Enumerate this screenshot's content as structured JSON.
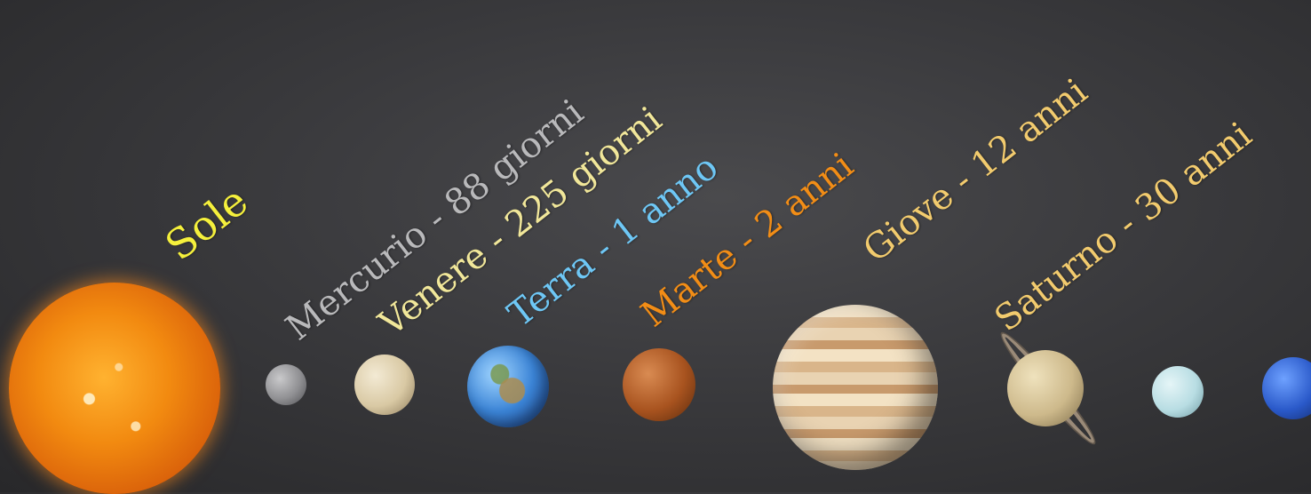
{
  "labels": {
    "sun": "Sole",
    "mercury": {
      "name": "Mercurio",
      "sep": " - ",
      "period": "88 giorni"
    },
    "venus": {
      "name": "Venere",
      "sep": " - ",
      "period": "225 giorni"
    },
    "earth": {
      "name": "Terra",
      "sep": " - ",
      "period": "1 anno"
    },
    "mars": {
      "name": "Marte",
      "sep": " - ",
      "period": "2 anni"
    },
    "jupiter": {
      "name": "Giove",
      "sep": " - ",
      "period": "12 anni"
    },
    "saturn": {
      "name": "Saturno",
      "sep": " - ",
      "period": "30 anni"
    }
  },
  "colors": {
    "sun_label": "#f5f03c",
    "mercury_label": "#b9b9bb",
    "venus_label": "#f1e79a",
    "earth_name": "#6ec7f5",
    "earth_period": "#6ec7f5",
    "mars_label": "#f28d16",
    "jupiter_label": "#f2cb6e",
    "saturn_label": "#f2cb6e"
  }
}
